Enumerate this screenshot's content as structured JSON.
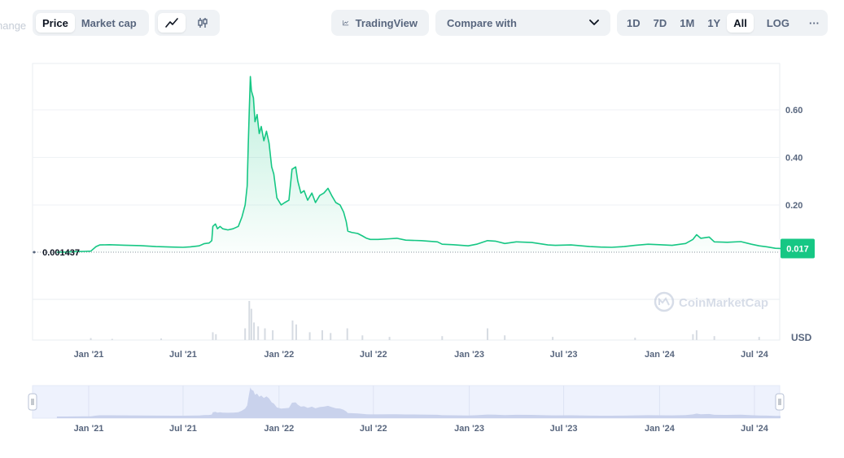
{
  "toolbar": {
    "type_tabs": [
      "Price",
      "Market cap"
    ],
    "tradingview_label": "TradingView",
    "compare_label": "Compare with",
    "ranges": [
      "1D",
      "7D",
      "1M",
      "1Y",
      "All"
    ],
    "log_label": "LOG",
    "more_label": "···"
  },
  "ghost_text": "hange",
  "chart_data": {
    "type": "area",
    "x_ticks": [
      "Jan '21",
      "Jul '21",
      "Jan '22",
      "Jul '22",
      "Jan '23",
      "Jul '23",
      "Jan '24",
      "Jul '24"
    ],
    "y_ticks": [
      0.2,
      0.4,
      0.6
    ],
    "y_tick_labels": [
      "0.20",
      "0.40",
      "0.60"
    ],
    "ylim": [
      0,
      0.75
    ],
    "baseline_value": 0.001437,
    "baseline_label": "0.001437",
    "current_value_label": "0.017",
    "volume_axis_label": "USD",
    "watermark": "CoinMarketCap",
    "line_color": "#16c784",
    "price": [
      [
        "2020-11-01",
        0.0014
      ],
      [
        "2020-11-20",
        0.002
      ],
      [
        "2020-12-05",
        0.004
      ],
      [
        "2020-12-25",
        0.005
      ],
      [
        "2021-01-05",
        0.006
      ],
      [
        "2021-01-15",
        0.025
      ],
      [
        "2021-01-22",
        0.032
      ],
      [
        "2021-02-10",
        0.033
      ],
      [
        "2021-03-10",
        0.031
      ],
      [
        "2021-04-10",
        0.029
      ],
      [
        "2021-05-10",
        0.025
      ],
      [
        "2021-06-10",
        0.023
      ],
      [
        "2021-07-01",
        0.022
      ],
      [
        "2021-07-15",
        0.024
      ],
      [
        "2021-08-01",
        0.028
      ],
      [
        "2021-08-10",
        0.037
      ],
      [
        "2021-08-20",
        0.04
      ],
      [
        "2021-08-25",
        0.05
      ],
      [
        "2021-08-27",
        0.11
      ],
      [
        "2021-09-01",
        0.12
      ],
      [
        "2021-09-05",
        0.1
      ],
      [
        "2021-09-10",
        0.11
      ],
      [
        "2021-09-15",
        0.1
      ],
      [
        "2021-09-25",
        0.095
      ],
      [
        "2021-10-05",
        0.1
      ],
      [
        "2021-10-15",
        0.11
      ],
      [
        "2021-10-22",
        0.15
      ],
      [
        "2021-10-28",
        0.2
      ],
      [
        "2021-11-01",
        0.28
      ],
      [
        "2021-11-03",
        0.45
      ],
      [
        "2021-11-05",
        0.6
      ],
      [
        "2021-11-07",
        0.74
      ],
      [
        "2021-11-09",
        0.68
      ],
      [
        "2021-11-13",
        0.65
      ],
      [
        "2021-11-16",
        0.55
      ],
      [
        "2021-11-20",
        0.58
      ],
      [
        "2021-11-24",
        0.5
      ],
      [
        "2021-11-28",
        0.53
      ],
      [
        "2021-12-03",
        0.47
      ],
      [
        "2021-12-08",
        0.51
      ],
      [
        "2021-12-13",
        0.46
      ],
      [
        "2021-12-18",
        0.36
      ],
      [
        "2021-12-22",
        0.33
      ],
      [
        "2021-12-28",
        0.23
      ],
      [
        "2022-01-05",
        0.2
      ],
      [
        "2022-01-12",
        0.21
      ],
      [
        "2022-01-20",
        0.22
      ],
      [
        "2022-01-26",
        0.35
      ],
      [
        "2022-02-02",
        0.36
      ],
      [
        "2022-02-06",
        0.3
      ],
      [
        "2022-02-12",
        0.25
      ],
      [
        "2022-02-18",
        0.26
      ],
      [
        "2022-02-25",
        0.22
      ],
      [
        "2022-03-05",
        0.25
      ],
      [
        "2022-03-12",
        0.21
      ],
      [
        "2022-03-20",
        0.24
      ],
      [
        "2022-03-28",
        0.25
      ],
      [
        "2022-04-05",
        0.27
      ],
      [
        "2022-04-12",
        0.24
      ],
      [
        "2022-04-20",
        0.21
      ],
      [
        "2022-04-28",
        0.2
      ],
      [
        "2022-05-05",
        0.17
      ],
      [
        "2022-05-10",
        0.13
      ],
      [
        "2022-05-13",
        0.09
      ],
      [
        "2022-05-20",
        0.085
      ],
      [
        "2022-06-01",
        0.08
      ],
      [
        "2022-06-10",
        0.07
      ],
      [
        "2022-06-18",
        0.06
      ],
      [
        "2022-06-25",
        0.055
      ],
      [
        "2022-07-10",
        0.055
      ],
      [
        "2022-08-01",
        0.058
      ],
      [
        "2022-08-15",
        0.06
      ],
      [
        "2022-09-01",
        0.052
      ],
      [
        "2022-10-01",
        0.05
      ],
      [
        "2022-11-01",
        0.045
      ],
      [
        "2022-11-10",
        0.035
      ],
      [
        "2022-12-01",
        0.033
      ],
      [
        "2022-12-30",
        0.028
      ],
      [
        "2023-01-15",
        0.035
      ],
      [
        "2023-02-05",
        0.05
      ],
      [
        "2023-02-20",
        0.048
      ],
      [
        "2023-03-10",
        0.038
      ],
      [
        "2023-04-01",
        0.045
      ],
      [
        "2023-05-01",
        0.042
      ],
      [
        "2023-06-01",
        0.032
      ],
      [
        "2023-06-15",
        0.03
      ],
      [
        "2023-07-15",
        0.032
      ],
      [
        "2023-08-20",
        0.025
      ],
      [
        "2023-09-10",
        0.023
      ],
      [
        "2023-10-01",
        0.022
      ],
      [
        "2023-10-25",
        0.025
      ],
      [
        "2023-11-15",
        0.03
      ],
      [
        "2023-12-10",
        0.035
      ],
      [
        "2024-01-01",
        0.033
      ],
      [
        "2024-01-25",
        0.03
      ],
      [
        "2024-02-20",
        0.038
      ],
      [
        "2024-03-05",
        0.055
      ],
      [
        "2024-03-12",
        0.075
      ],
      [
        "2024-03-20",
        0.06
      ],
      [
        "2024-04-05",
        0.065
      ],
      [
        "2024-04-15",
        0.045
      ],
      [
        "2024-05-10",
        0.043
      ],
      [
        "2024-06-05",
        0.046
      ],
      [
        "2024-06-25",
        0.035
      ],
      [
        "2024-07-10",
        0.028
      ],
      [
        "2024-07-25",
        0.024
      ],
      [
        "2024-08-10",
        0.018
      ],
      [
        "2024-08-20",
        0.017
      ]
    ],
    "volume_peaks": [
      [
        "2021-01-05",
        0.05
      ],
      [
        "2021-02-15",
        0.03
      ],
      [
        "2021-05-20",
        0.04
      ],
      [
        "2021-08-27",
        0.2
      ],
      [
        "2021-09-02",
        0.15
      ],
      [
        "2021-10-28",
        0.3
      ],
      [
        "2021-11-05",
        1.0
      ],
      [
        "2021-11-09",
        0.8
      ],
      [
        "2021-11-14",
        0.45
      ],
      [
        "2021-11-22",
        0.35
      ],
      [
        "2021-12-05",
        0.3
      ],
      [
        "2021-12-20",
        0.25
      ],
      [
        "2022-01-27",
        0.5
      ],
      [
        "2022-02-03",
        0.4
      ],
      [
        "2022-03-01",
        0.2
      ],
      [
        "2022-03-25",
        0.25
      ],
      [
        "2022-04-10",
        0.18
      ],
      [
        "2022-05-12",
        0.3
      ],
      [
        "2022-06-10",
        0.12
      ],
      [
        "2022-08-01",
        0.08
      ],
      [
        "2022-11-10",
        0.1
      ],
      [
        "2023-02-05",
        0.3
      ],
      [
        "2023-03-10",
        0.12
      ],
      [
        "2023-06-10",
        0.08
      ],
      [
        "2023-11-15",
        0.06
      ],
      [
        "2024-03-05",
        0.15
      ],
      [
        "2024-03-12",
        0.25
      ],
      [
        "2024-04-15",
        0.1
      ],
      [
        "2024-07-10",
        0.08
      ]
    ]
  }
}
